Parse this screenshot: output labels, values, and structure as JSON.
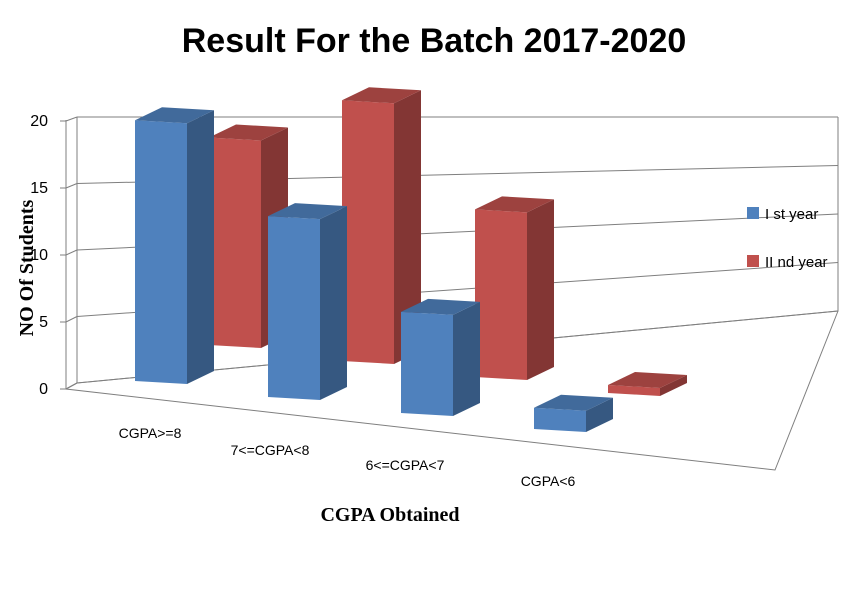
{
  "chart_data": {
    "type": "bar",
    "title": "Result For the Batch 2017-2020",
    "xlabel": "CGPA Obtained",
    "ylabel": "NO Of Students",
    "categories": [
      "CGPA>=8",
      "7<=CGPA<8",
      "6<=CGPA<7",
      "CGPA<6"
    ],
    "yticks": [
      "0",
      "5",
      "10",
      "15",
      "20"
    ],
    "ylim": [
      0,
      20
    ],
    "grid": true,
    "legend_position": "right",
    "style": "3d-clustered-column",
    "series": [
      {
        "name": "I st year",
        "color": "#4f81bd",
        "values": [
          19,
          13,
          7,
          1
        ]
      },
      {
        "name": "II nd year",
        "color": "#c0504d",
        "values": [
          15,
          19,
          12,
          0
        ]
      }
    ]
  }
}
